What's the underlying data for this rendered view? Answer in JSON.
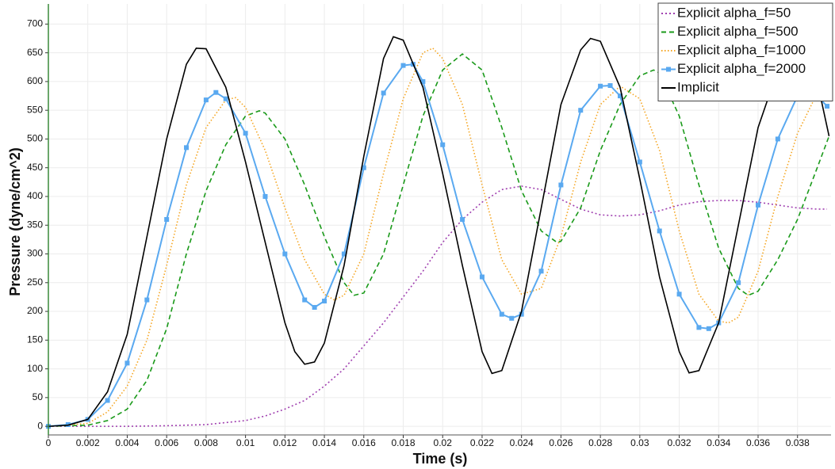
{
  "chart_data": {
    "type": "line",
    "xlabel": "Time (s)",
    "ylabel": "Pressure (dyne/cm^2)",
    "xlim": [
      0,
      0.0397
    ],
    "ylim": [
      -15,
      735
    ],
    "xticks": [
      0,
      0.002,
      0.004,
      0.006,
      0.008,
      0.01,
      0.012,
      0.014,
      0.016,
      0.018,
      0.02,
      0.022,
      0.024,
      0.026,
      0.028,
      0.03,
      0.032,
      0.034,
      0.036,
      0.038
    ],
    "yticks": [
      0,
      50,
      100,
      150,
      200,
      250,
      300,
      350,
      400,
      450,
      500,
      550,
      600,
      650,
      700
    ],
    "grid": true,
    "legend": "upper right",
    "series": [
      {
        "name": "Explicit alpha_f=50",
        "color": "#a040b0",
        "dash": "2,3",
        "marker": false,
        "x": [
          0,
          0.002,
          0.004,
          0.006,
          0.008,
          0.01,
          0.011,
          0.012,
          0.013,
          0.014,
          0.015,
          0.016,
          0.017,
          0.018,
          0.019,
          0.02,
          0.021,
          0.022,
          0.023,
          0.024,
          0.025,
          0.026,
          0.027,
          0.028,
          0.029,
          0.03,
          0.031,
          0.032,
          0.033,
          0.034,
          0.035,
          0.036,
          0.037,
          0.038,
          0.039,
          0.0395
        ],
        "values": [
          0,
          0,
          0,
          1,
          3,
          10,
          18,
          30,
          45,
          70,
          100,
          140,
          180,
          225,
          270,
          320,
          360,
          390,
          412,
          418,
          412,
          395,
          378,
          368,
          366,
          368,
          375,
          385,
          391,
          393,
          393,
          390,
          385,
          380,
          378,
          378
        ]
      },
      {
        "name": "Explicit alpha_f=500",
        "color": "#1a9a1a",
        "dash": "6,4",
        "marker": false,
        "x": [
          0,
          0.002,
          0.003,
          0.004,
          0.005,
          0.006,
          0.007,
          0.008,
          0.009,
          0.01,
          0.0107,
          0.011,
          0.012,
          0.013,
          0.014,
          0.015,
          0.0155,
          0.016,
          0.017,
          0.018,
          0.019,
          0.02,
          0.021,
          0.022,
          0.023,
          0.024,
          0.025,
          0.0258,
          0.026,
          0.027,
          0.028,
          0.029,
          0.03,
          0.0307,
          0.031,
          0.032,
          0.033,
          0.034,
          0.035,
          0.0355,
          0.036,
          0.037,
          0.038,
          0.039,
          0.0396
        ],
        "values": [
          0,
          2,
          10,
          30,
          80,
          170,
          300,
          410,
          490,
          540,
          549,
          545,
          500,
          420,
          330,
          250,
          228,
          232,
          300,
          420,
          540,
          620,
          648,
          620,
          520,
          410,
          340,
          320,
          322,
          380,
          480,
          560,
          610,
          620,
          615,
          540,
          420,
          310,
          240,
          228,
          235,
          290,
          360,
          450,
          505
        ]
      },
      {
        "name": "Explicit alpha_f=1000",
        "color": "#f5a623",
        "dash": "1.5,2.5",
        "marker": false,
        "x": [
          0,
          0.002,
          0.003,
          0.004,
          0.005,
          0.006,
          0.007,
          0.008,
          0.009,
          0.0095,
          0.01,
          0.011,
          0.012,
          0.013,
          0.014,
          0.0145,
          0.015,
          0.016,
          0.017,
          0.018,
          0.019,
          0.0195,
          0.02,
          0.021,
          0.022,
          0.023,
          0.024,
          0.025,
          0.026,
          0.027,
          0.028,
          0.029,
          0.03,
          0.031,
          0.032,
          0.033,
          0.034,
          0.0345,
          0.035,
          0.036,
          0.037,
          0.038,
          0.039,
          0.0395
        ],
        "values": [
          0,
          5,
          25,
          70,
          150,
          280,
          420,
          520,
          568,
          572,
          555,
          480,
          380,
          290,
          230,
          220,
          228,
          300,
          440,
          570,
          650,
          658,
          640,
          560,
          420,
          290,
          230,
          240,
          330,
          460,
          560,
          592,
          570,
          480,
          340,
          230,
          183,
          180,
          190,
          270,
          400,
          510,
          580,
          575
        ]
      },
      {
        "name": "Explicit alpha_f=2000",
        "color": "#5aa9f0",
        "dash": "",
        "marker": true,
        "x": [
          0,
          0.001,
          0.002,
          0.003,
          0.004,
          0.005,
          0.006,
          0.007,
          0.008,
          0.0085,
          0.009,
          0.01,
          0.011,
          0.012,
          0.013,
          0.0135,
          0.014,
          0.015,
          0.016,
          0.017,
          0.018,
          0.0185,
          0.019,
          0.02,
          0.021,
          0.022,
          0.023,
          0.0235,
          0.024,
          0.025,
          0.026,
          0.027,
          0.028,
          0.0285,
          0.029,
          0.03,
          0.031,
          0.032,
          0.033,
          0.0335,
          0.034,
          0.035,
          0.036,
          0.037,
          0.038,
          0.039,
          0.0395
        ],
        "values": [
          0,
          3,
          12,
          45,
          110,
          220,
          360,
          485,
          568,
          581,
          570,
          510,
          400,
          300,
          220,
          207,
          218,
          300,
          450,
          580,
          628,
          630,
          600,
          490,
          360,
          260,
          195,
          188,
          195,
          270,
          420,
          550,
          592,
          593,
          575,
          460,
          340,
          230,
          172,
          170,
          180,
          250,
          385,
          500,
          575,
          575,
          557
        ]
      },
      {
        "name": "Implicit",
        "color": "#000000",
        "dash": "",
        "marker": false,
        "x": [
          0,
          0.001,
          0.002,
          0.003,
          0.004,
          0.005,
          0.006,
          0.007,
          0.0075,
          0.008,
          0.009,
          0.01,
          0.011,
          0.012,
          0.0125,
          0.013,
          0.0135,
          0.014,
          0.015,
          0.016,
          0.017,
          0.0175,
          0.018,
          0.019,
          0.02,
          0.021,
          0.022,
          0.0225,
          0.023,
          0.024,
          0.025,
          0.026,
          0.027,
          0.0275,
          0.028,
          0.029,
          0.03,
          0.031,
          0.032,
          0.0325,
          0.033,
          0.034,
          0.035,
          0.036,
          0.037,
          0.038,
          0.039,
          0.0396
        ],
        "values": [
          0,
          2,
          12,
          60,
          160,
          330,
          500,
          630,
          658,
          657,
          590,
          460,
          320,
          180,
          130,
          108,
          112,
          145,
          280,
          470,
          640,
          678,
          672,
          590,
          440,
          280,
          130,
          92,
          97,
          200,
          380,
          560,
          655,
          675,
          670,
          590,
          430,
          260,
          130,
          93,
          97,
          180,
          350,
          520,
          620,
          660,
          600,
          505
        ]
      }
    ]
  }
}
